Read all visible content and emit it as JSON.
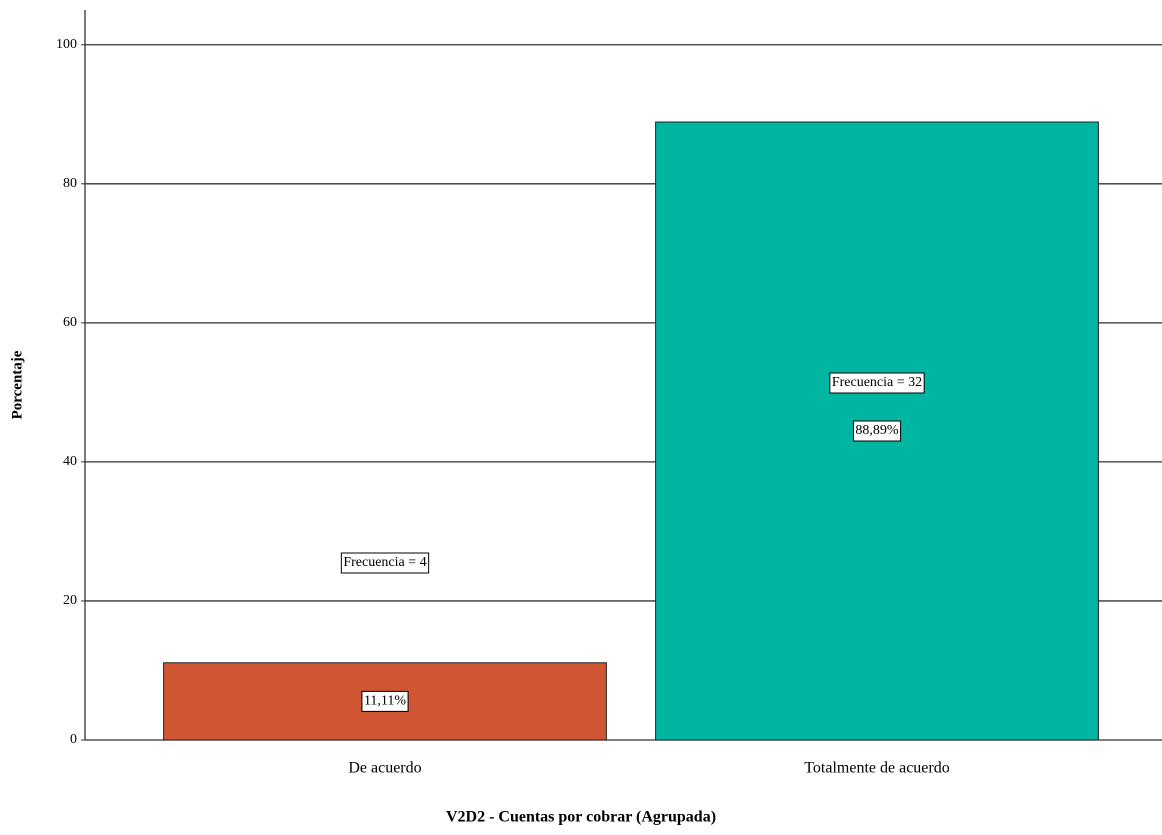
{
  "chart_data": {
    "type": "bar",
    "categories": [
      "De acuerdo",
      "Totalmente de acuerdo"
    ],
    "values": [
      11.11,
      88.89
    ],
    "value_labels": [
      "11,11%",
      "88,89%"
    ],
    "annotations": [
      "Frecuencia = 4",
      "Frecuencia = 32"
    ],
    "colors": [
      "#d05533",
      "#00b5a2"
    ],
    "xlabel": "V2D2 - Cuentas por cobrar (Agrupada)",
    "ylabel": "Porcentaje",
    "ylim": [
      0,
      105
    ],
    "yticks": [
      0,
      20,
      40,
      60,
      80,
      100
    ],
    "grid": true
  }
}
